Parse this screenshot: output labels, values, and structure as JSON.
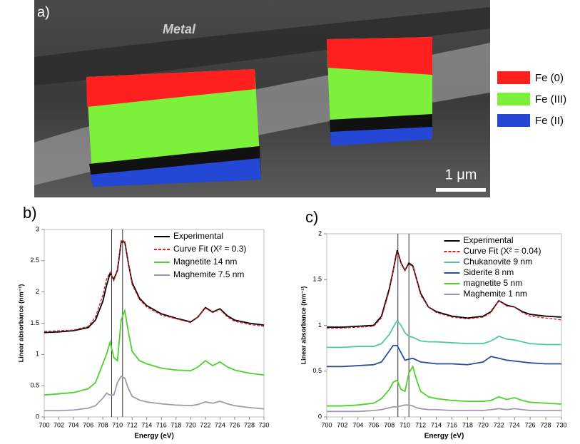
{
  "image_panel": {
    "label": "a)",
    "region_label": "Metal",
    "scale_bar": "1 μm",
    "legend": [
      {
        "name": "Fe (0)",
        "color": "#ff1f1f"
      },
      {
        "name": "Fe (III)",
        "color": "#7cf03a"
      },
      {
        "name": "Fe (II)",
        "color": "#2547d6"
      }
    ]
  },
  "chart_data": [
    {
      "type": "line",
      "panel_label": "b)",
      "x_label": "Energy (eV)",
      "y_label": "Linear absorbance (nm⁻¹)",
      "legend": "upper right",
      "xlim": [
        700,
        730
      ],
      "ylim": [
        0,
        3
      ],
      "xticks": [
        700,
        702,
        704,
        706,
        708,
        710,
        712,
        714,
        716,
        718,
        720,
        722,
        724,
        726,
        728,
        730
      ],
      "yticks": [
        0,
        0.5,
        1,
        1.5,
        2,
        2.5,
        3
      ],
      "vlines": [
        709.2,
        710.7
      ],
      "x": [
        700,
        702,
        704,
        706,
        707,
        708,
        708.5,
        709,
        709.5,
        710,
        710.5,
        711,
        711.5,
        712,
        713,
        714,
        716,
        718,
        720,
        721,
        722,
        723,
        724,
        725,
        726,
        728,
        730
      ],
      "series": [
        {
          "name": "Experimental",
          "color": "#000000",
          "linestyle": "solid",
          "values": [
            1.35,
            1.36,
            1.38,
            1.43,
            1.55,
            1.85,
            2.1,
            2.3,
            2.2,
            2.35,
            2.8,
            2.8,
            2.45,
            2.15,
            1.9,
            1.78,
            1.65,
            1.58,
            1.52,
            1.6,
            1.75,
            1.68,
            1.73,
            1.62,
            1.55,
            1.5,
            1.47
          ]
        },
        {
          "name": "Curve Fit (X² = 0.3)",
          "color": "#d62020",
          "linestyle": "dashed",
          "values": [
            1.37,
            1.38,
            1.39,
            1.45,
            1.6,
            1.95,
            2.2,
            2.32,
            2.18,
            2.35,
            2.82,
            2.82,
            2.45,
            2.12,
            1.88,
            1.76,
            1.63,
            1.57,
            1.51,
            1.6,
            1.74,
            1.67,
            1.72,
            1.6,
            1.53,
            1.48,
            1.45
          ]
        },
        {
          "name": "Magnetite 14 nm",
          "color": "#4cd42a",
          "linestyle": "solid",
          "values": [
            0.35,
            0.37,
            0.39,
            0.45,
            0.55,
            0.85,
            1.0,
            1.2,
            0.95,
            0.9,
            1.55,
            1.7,
            1.35,
            1.05,
            0.9,
            0.85,
            0.78,
            0.75,
            0.74,
            0.8,
            0.9,
            0.82,
            0.88,
            0.8,
            0.75,
            0.7,
            0.67
          ]
        },
        {
          "name": "Maghemite 7.5 nm",
          "color": "#a596b0",
          "linestyle": "solid",
          "values": [
            0.1,
            0.1,
            0.11,
            0.14,
            0.18,
            0.3,
            0.38,
            0.35,
            0.35,
            0.55,
            0.65,
            0.62,
            0.45,
            0.33,
            0.27,
            0.24,
            0.21,
            0.19,
            0.18,
            0.2,
            0.24,
            0.22,
            0.25,
            0.21,
            0.18,
            0.15,
            0.13
          ]
        }
      ]
    },
    {
      "type": "line",
      "panel_label": "c)",
      "x_label": "Energy (eV)",
      "y_label": "Linear absorbance (nm⁻¹)",
      "legend": "upper right",
      "xlim": [
        700,
        730
      ],
      "ylim": [
        0,
        2
      ],
      "xticks": [
        700,
        702,
        704,
        706,
        708,
        710,
        712,
        714,
        716,
        718,
        720,
        722,
        724,
        726,
        728,
        730
      ],
      "yticks": [
        0,
        0.5,
        1,
        1.5,
        2
      ],
      "vlines": [
        709.1,
        710.5
      ],
      "x": [
        700,
        702,
        704,
        706,
        707,
        708,
        708.5,
        709,
        709.5,
        710,
        710.5,
        711,
        711.5,
        712,
        713,
        714,
        716,
        718,
        720,
        721,
        722,
        723,
        724,
        725,
        726,
        728,
        730
      ],
      "series": [
        {
          "name": "Experimental",
          "color": "#000000",
          "linestyle": "solid",
          "values": [
            0.98,
            0.98,
            0.99,
            1.0,
            1.1,
            1.4,
            1.6,
            1.82,
            1.68,
            1.6,
            1.68,
            1.65,
            1.5,
            1.35,
            1.2,
            1.15,
            1.1,
            1.08,
            1.1,
            1.15,
            1.27,
            1.22,
            1.2,
            1.15,
            1.12,
            1.1,
            1.09
          ]
        },
        {
          "name": "Curve Fit (X² = 0.04)",
          "color": "#d62020",
          "linestyle": "dashed",
          "values": [
            0.97,
            0.97,
            0.98,
            0.99,
            1.08,
            1.38,
            1.6,
            1.8,
            1.68,
            1.6,
            1.67,
            1.64,
            1.5,
            1.33,
            1.2,
            1.14,
            1.09,
            1.07,
            1.09,
            1.14,
            1.27,
            1.21,
            1.2,
            1.14,
            1.1,
            1.08,
            1.06
          ]
        },
        {
          "name": "Chukanovite 9 nm",
          "color": "#4fc9a2",
          "linestyle": "solid",
          "values": [
            0.76,
            0.76,
            0.77,
            0.77,
            0.8,
            0.9,
            0.98,
            1.05,
            1.0,
            0.92,
            0.88,
            0.87,
            0.85,
            0.83,
            0.82,
            0.82,
            0.81,
            0.8,
            0.8,
            0.83,
            0.88,
            0.85,
            0.84,
            0.82,
            0.8,
            0.79,
            0.79
          ]
        },
        {
          "name": "Siderite 8 nm",
          "color": "#2a4f9a",
          "linestyle": "solid",
          "values": [
            0.55,
            0.55,
            0.56,
            0.57,
            0.6,
            0.72,
            0.78,
            0.78,
            0.7,
            0.62,
            0.63,
            0.64,
            0.62,
            0.6,
            0.59,
            0.58,
            0.58,
            0.57,
            0.6,
            0.66,
            0.64,
            0.62,
            0.61,
            0.6,
            0.59,
            0.58,
            0.58
          ]
        },
        {
          "name": "magnetite 5 nm",
          "color": "#4cd42a",
          "linestyle": "solid",
          "values": [
            0.12,
            0.12,
            0.13,
            0.15,
            0.2,
            0.3,
            0.38,
            0.4,
            0.3,
            0.28,
            0.48,
            0.55,
            0.4,
            0.28,
            0.22,
            0.2,
            0.18,
            0.17,
            0.17,
            0.18,
            0.22,
            0.19,
            0.21,
            0.18,
            0.16,
            0.15,
            0.14
          ]
        },
        {
          "name": "Maghemite 1 nm",
          "color": "#a596b0",
          "linestyle": "solid",
          "values": [
            0.06,
            0.06,
            0.06,
            0.07,
            0.08,
            0.1,
            0.11,
            0.11,
            0.12,
            0.13,
            0.13,
            0.12,
            0.1,
            0.09,
            0.08,
            0.08,
            0.07,
            0.07,
            0.07,
            0.08,
            0.09,
            0.08,
            0.09,
            0.08,
            0.07,
            0.07,
            0.07
          ]
        }
      ]
    }
  ]
}
